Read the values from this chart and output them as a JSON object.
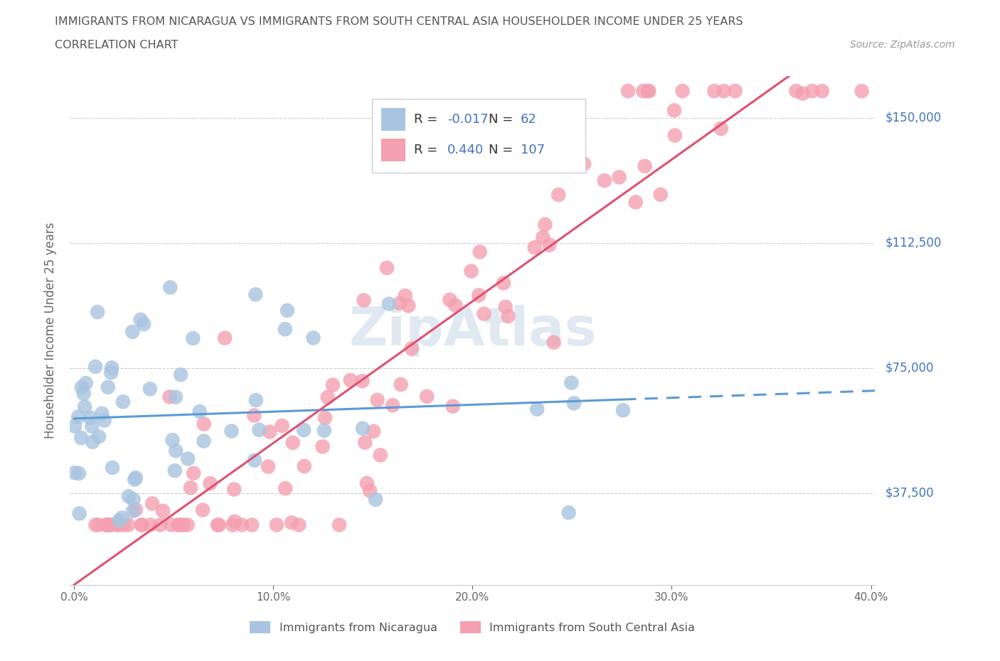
{
  "title_line1": "IMMIGRANTS FROM NICARAGUA VS IMMIGRANTS FROM SOUTH CENTRAL ASIA HOUSEHOLDER INCOME UNDER 25 YEARS",
  "title_line2": "CORRELATION CHART",
  "source_text": "Source: ZipAtlas.com",
  "ylabel": "Householder Income Under 25 years",
  "xlim": [
    -0.002,
    0.402
  ],
  "ylim": [
    10000,
    162500
  ],
  "xtick_labels": [
    "0.0%",
    "10.0%",
    "20.0%",
    "30.0%",
    "40.0%"
  ],
  "xtick_values": [
    0.0,
    0.1,
    0.2,
    0.3,
    0.4
  ],
  "ytick_values": [
    37500,
    75000,
    112500,
    150000
  ],
  "ytick_labels": [
    "$37,500",
    "$75,000",
    "$112,500",
    "$150,000"
  ],
  "r_nicaragua": -0.017,
  "n_nicaragua": 62,
  "r_south_central_asia": 0.44,
  "n_south_central_asia": 107,
  "color_nicaragua": "#a8c4e0",
  "color_south_central_asia": "#f4a0b0",
  "line_nicaragua": "#5b9bd5",
  "line_sca": "#e05070",
  "watermark": "ZipAtlas"
}
